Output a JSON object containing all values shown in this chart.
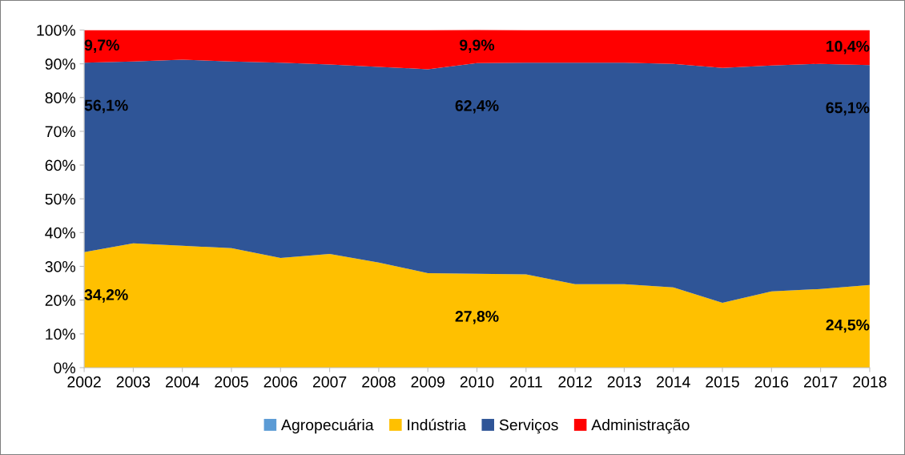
{
  "chart_data": {
    "type": "area",
    "stacked": true,
    "legend": "bottom",
    "grid": false,
    "categories": [
      "2002",
      "2003",
      "2004",
      "2005",
      "2006",
      "2007",
      "2008",
      "2009",
      "2010",
      "2011",
      "2012",
      "2013",
      "2014",
      "2015",
      "2016",
      "2017",
      "2018"
    ],
    "ylim": [
      0,
      100
    ],
    "yticks": [
      {
        "value": 0,
        "label": "0%"
      },
      {
        "value": 10,
        "label": "10%"
      },
      {
        "value": 20,
        "label": "20%"
      },
      {
        "value": 30,
        "label": "30%"
      },
      {
        "value": 40,
        "label": "40%"
      },
      {
        "value": 50,
        "label": "50%"
      },
      {
        "value": 60,
        "label": "60%"
      },
      {
        "value": 70,
        "label": "70%"
      },
      {
        "value": 80,
        "label": "80%"
      },
      {
        "value": 90,
        "label": "90%"
      },
      {
        "value": 100,
        "label": "100%"
      }
    ],
    "series": [
      {
        "name": "Agropecuária",
        "color": "#5b9bd5",
        "values": [
          null,
          null,
          null,
          null,
          null,
          null,
          null,
          null,
          null,
          null,
          null,
          null,
          null,
          null,
          null,
          null,
          null
        ]
      },
      {
        "name": "Indústria",
        "color": "#ffc000",
        "values": [
          34.2,
          36.8,
          36.1,
          35.4,
          32.5,
          33.7,
          31.1,
          28.0,
          27.8,
          27.6,
          24.7,
          24.7,
          23.8,
          19.2,
          22.6,
          23.3,
          24.5
        ],
        "value_labels": [
          "34,2%",
          null,
          null,
          null,
          null,
          null,
          null,
          null,
          "27,8%",
          null,
          null,
          null,
          null,
          null,
          null,
          null,
          "24,5%"
        ]
      },
      {
        "name": "Serviços",
        "color": "#2f5597",
        "values": [
          56.1,
          53.9,
          55.1,
          55.3,
          57.8,
          56.1,
          58.0,
          60.4,
          62.4,
          62.7,
          65.6,
          65.6,
          66.2,
          69.6,
          66.9,
          66.7,
          65.1
        ],
        "value_labels": [
          "56,1%",
          null,
          null,
          null,
          null,
          null,
          null,
          null,
          "62,4%",
          null,
          null,
          null,
          null,
          null,
          null,
          null,
          "65,1%"
        ]
      },
      {
        "name": "Administração",
        "color": "#ff0000",
        "values": [
          9.7,
          9.3,
          8.8,
          9.3,
          9.7,
          10.2,
          10.9,
          11.6,
          9.9,
          9.7,
          9.7,
          9.7,
          10.0,
          11.2,
          10.5,
          10.0,
          10.4
        ],
        "value_labels": [
          "9,7%",
          null,
          null,
          null,
          null,
          null,
          null,
          null,
          "9,9%",
          null,
          null,
          null,
          null,
          null,
          null,
          null,
          "10,4%"
        ]
      }
    ]
  }
}
